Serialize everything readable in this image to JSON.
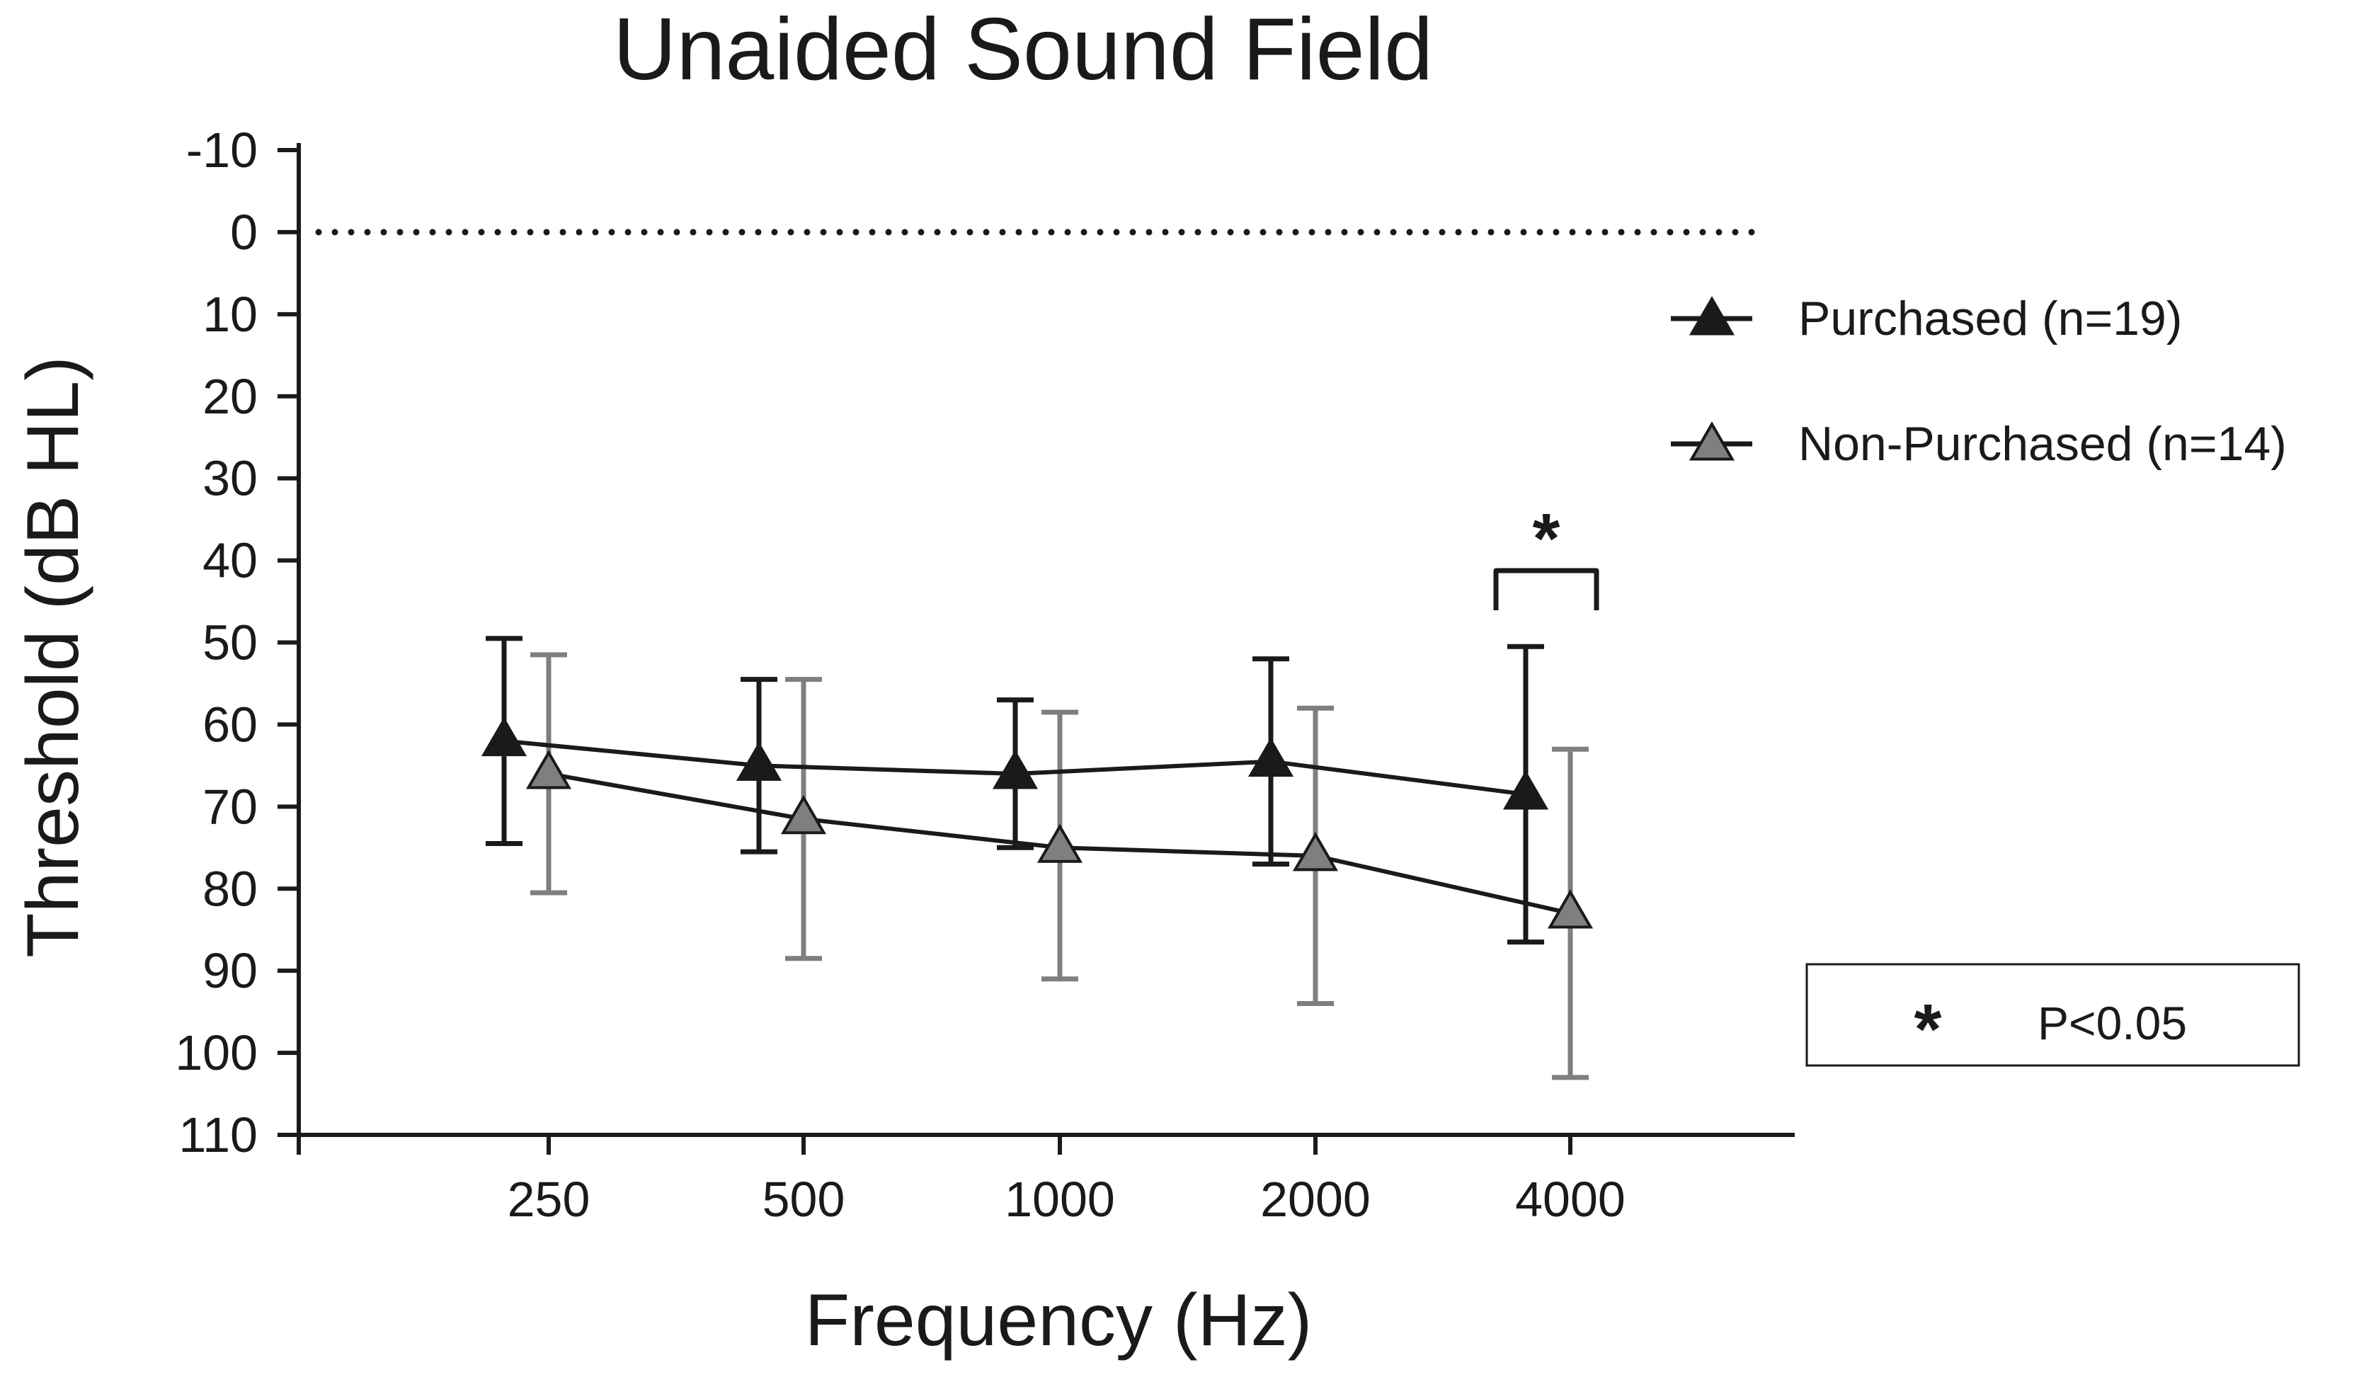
{
  "chart_data": {
    "type": "line",
    "title": "Unaided Sound Field",
    "xlabel": "Frequency (Hz)",
    "ylabel": "Threshold (dB HL)",
    "categories": [
      "250",
      "500",
      "1000",
      "2000",
      "4000"
    ],
    "y_ticks": [
      "-10",
      "0",
      "10",
      "20",
      "30",
      "40",
      "50",
      "60",
      "70",
      "80",
      "90",
      "100",
      "110"
    ],
    "ylim": [
      -10,
      110
    ],
    "y_inverted": true,
    "reference_line": {
      "y": 0,
      "style": "dotted"
    },
    "series": [
      {
        "name": "Purchased (n=19)",
        "marker": "triangle-filled",
        "color": "#1a1a1a",
        "values": [
          62,
          65,
          66,
          64.5,
          68.5
        ],
        "error_lower": [
          49.5,
          54.5,
          57,
          52,
          50.5
        ],
        "error_upper": [
          74.5,
          75.5,
          75,
          77,
          86.5
        ]
      },
      {
        "name": "Non-Purchased (n=14)",
        "marker": "triangle-gray",
        "color": "#7a7a7a",
        "values": [
          66,
          71.5,
          75,
          76,
          83
        ],
        "error_lower": [
          51.5,
          54.5,
          58.5,
          58,
          63
        ],
        "error_upper": [
          80.5,
          88.5,
          91,
          94,
          103
        ]
      }
    ],
    "annotations": [
      {
        "category": "4000",
        "text": "*",
        "type": "significance-bracket"
      }
    ],
    "note": {
      "symbol": "*",
      "text": "P<0.05"
    }
  }
}
